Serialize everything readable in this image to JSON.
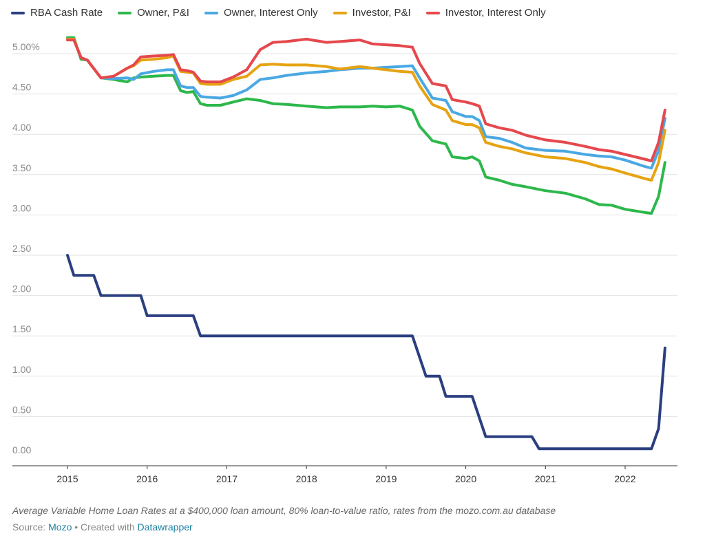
{
  "legend": [
    {
      "label": "RBA Cash Rate",
      "color": "#2b3f80"
    },
    {
      "label": "Owner, P&I",
      "color": "#2db84b"
    },
    {
      "label": "Owner, Interest Only",
      "color": "#4aa8e3"
    },
    {
      "label": "Investor, P&I",
      "color": "#e6a312"
    },
    {
      "label": "Investor, Interest Only",
      "color": "#e5484d"
    }
  ],
  "notes": "Average Variable Home Loan Rates at a $400,000 loan amount, 80% loan-to-value ratio, rates from the mozo.com.au database",
  "source": {
    "prefix": "Source:",
    "name": "Mozo",
    "separator": " • Created with ",
    "tool": "Datawrapper"
  },
  "chart_data": {
    "type": "line",
    "x_ticks": [
      "2015",
      "2016",
      "2017",
      "2018",
      "2019",
      "2020",
      "2021",
      "2022"
    ],
    "y_ticks": [
      "0.00",
      "0.50",
      "1.00",
      "1.50",
      "2.00",
      "2.50",
      "3.00",
      "3.50",
      "4.00",
      "4.50",
      "5.00%"
    ],
    "ylim": [
      0,
      5.25
    ],
    "xlim": [
      2014.75,
      2022.7
    ],
    "grid": true,
    "legend_position": "top",
    "series": [
      {
        "name": "RBA Cash Rate",
        "color": "#2b3f80",
        "x": [
          2015.0,
          2015.08,
          2015.33,
          2015.42,
          2015.92,
          2016.0,
          2016.58,
          2016.67,
          2019.33,
          2019.5,
          2019.67,
          2019.75,
          2020.08,
          2020.25,
          2020.83,
          2020.92,
          2021.0,
          2022.33,
          2022.42,
          2022.5
        ],
        "y": [
          2.5,
          2.25,
          2.25,
          2.0,
          2.0,
          1.75,
          1.75,
          1.5,
          1.5,
          1.0,
          1.0,
          0.75,
          0.75,
          0.25,
          0.25,
          0.1,
          0.1,
          0.1,
          0.35,
          1.35
        ]
      },
      {
        "name": "Owner, P&I",
        "color": "#2db84b",
        "x": [
          2015.0,
          2015.08,
          2015.17,
          2015.25,
          2015.42,
          2015.58,
          2015.75,
          2015.83,
          2015.92,
          2016.08,
          2016.25,
          2016.33,
          2016.42,
          2016.5,
          2016.58,
          2016.67,
          2016.75,
          2016.92,
          2017.08,
          2017.25,
          2017.42,
          2017.58,
          2017.75,
          2018.0,
          2018.25,
          2018.42,
          2018.67,
          2018.83,
          2019.0,
          2019.17,
          2019.33,
          2019.42,
          2019.58,
          2019.75,
          2019.83,
          2020.0,
          2020.08,
          2020.17,
          2020.25,
          2020.42,
          2020.58,
          2020.75,
          2021.0,
          2021.25,
          2021.5,
          2021.67,
          2021.83,
          2022.0,
          2022.25,
          2022.33,
          2022.42,
          2022.5
        ],
        "y": [
          5.2,
          5.2,
          4.93,
          4.92,
          4.7,
          4.68,
          4.65,
          4.7,
          4.71,
          4.72,
          4.73,
          4.73,
          4.54,
          4.52,
          4.53,
          4.38,
          4.36,
          4.36,
          4.4,
          4.44,
          4.42,
          4.38,
          4.37,
          4.35,
          4.33,
          4.34,
          4.34,
          4.35,
          4.34,
          4.35,
          4.3,
          4.1,
          3.92,
          3.88,
          3.72,
          3.7,
          3.72,
          3.67,
          3.47,
          3.43,
          3.38,
          3.35,
          3.3,
          3.27,
          3.2,
          3.13,
          3.12,
          3.07,
          3.03,
          3.02,
          3.23,
          3.65
        ]
      },
      {
        "name": "Owner, Interest Only",
        "color": "#4aa8e3",
        "x": [
          2015.0,
          2015.08,
          2015.17,
          2015.25,
          2015.42,
          2015.58,
          2015.75,
          2015.83,
          2015.92,
          2016.08,
          2016.25,
          2016.33,
          2016.42,
          2016.5,
          2016.58,
          2016.67,
          2016.75,
          2016.92,
          2017.08,
          2017.25,
          2017.42,
          2017.58,
          2017.75,
          2018.0,
          2018.25,
          2018.42,
          2018.67,
          2018.83,
          2019.0,
          2019.17,
          2019.33,
          2019.42,
          2019.58,
          2019.75,
          2019.83,
          2020.0,
          2020.08,
          2020.17,
          2020.25,
          2020.42,
          2020.58,
          2020.75,
          2021.0,
          2021.25,
          2021.5,
          2021.67,
          2021.83,
          2022.0,
          2022.25,
          2022.33,
          2022.42,
          2022.5
        ],
        "y": [
          5.18,
          5.18,
          4.95,
          4.92,
          4.7,
          4.69,
          4.7,
          4.68,
          4.75,
          4.78,
          4.8,
          4.8,
          4.6,
          4.58,
          4.58,
          4.47,
          4.46,
          4.45,
          4.48,
          4.55,
          4.68,
          4.7,
          4.73,
          4.76,
          4.78,
          4.8,
          4.82,
          4.82,
          4.83,
          4.84,
          4.85,
          4.7,
          4.45,
          4.42,
          4.28,
          4.22,
          4.22,
          4.17,
          3.97,
          3.95,
          3.9,
          3.83,
          3.8,
          3.79,
          3.75,
          3.73,
          3.72,
          3.68,
          3.6,
          3.58,
          3.8,
          4.2
        ]
      },
      {
        "name": "Investor, P&I",
        "color": "#e6a312",
        "x": [
          2015.0,
          2015.08,
          2015.17,
          2015.25,
          2015.42,
          2015.58,
          2015.75,
          2015.83,
          2015.92,
          2016.08,
          2016.25,
          2016.33,
          2016.42,
          2016.5,
          2016.58,
          2016.67,
          2016.75,
          2016.92,
          2017.08,
          2017.25,
          2017.42,
          2017.58,
          2017.75,
          2018.0,
          2018.25,
          2018.42,
          2018.67,
          2018.83,
          2019.0,
          2019.17,
          2019.33,
          2019.42,
          2019.58,
          2019.75,
          2019.83,
          2020.0,
          2020.08,
          2020.17,
          2020.25,
          2020.42,
          2020.58,
          2020.75,
          2021.0,
          2021.25,
          2021.5,
          2021.67,
          2021.83,
          2022.0,
          2022.25,
          2022.33,
          2022.42,
          2022.5
        ],
        "y": [
          5.18,
          5.18,
          4.95,
          4.92,
          4.7,
          4.72,
          4.82,
          4.85,
          4.92,
          4.93,
          4.95,
          4.97,
          4.78,
          4.77,
          4.76,
          4.63,
          4.62,
          4.62,
          4.68,
          4.72,
          4.86,
          4.87,
          4.86,
          4.86,
          4.84,
          4.81,
          4.84,
          4.82,
          4.8,
          4.78,
          4.77,
          4.6,
          4.37,
          4.3,
          4.17,
          4.12,
          4.12,
          4.08,
          3.9,
          3.85,
          3.82,
          3.77,
          3.72,
          3.7,
          3.65,
          3.6,
          3.57,
          3.52,
          3.45,
          3.43,
          3.65,
          4.05
        ]
      },
      {
        "name": "Investor, Interest Only",
        "color": "#e5484d",
        "x": [
          2015.0,
          2015.08,
          2015.17,
          2015.25,
          2015.42,
          2015.58,
          2015.75,
          2015.83,
          2015.92,
          2016.08,
          2016.25,
          2016.33,
          2016.42,
          2016.5,
          2016.58,
          2016.67,
          2016.75,
          2016.92,
          2017.08,
          2017.25,
          2017.42,
          2017.58,
          2017.75,
          2018.0,
          2018.25,
          2018.42,
          2018.67,
          2018.83,
          2019.0,
          2019.17,
          2019.33,
          2019.42,
          2019.58,
          2019.75,
          2019.83,
          2020.0,
          2020.08,
          2020.17,
          2020.25,
          2020.42,
          2020.58,
          2020.75,
          2021.0,
          2021.25,
          2021.5,
          2021.67,
          2021.83,
          2022.0,
          2022.25,
          2022.33,
          2022.42,
          2022.5
        ],
        "y": [
          5.17,
          5.17,
          4.95,
          4.92,
          4.7,
          4.72,
          4.82,
          4.86,
          4.96,
          4.97,
          4.98,
          4.99,
          4.8,
          4.79,
          4.77,
          4.66,
          4.65,
          4.65,
          4.71,
          4.8,
          5.05,
          5.14,
          5.15,
          5.18,
          5.14,
          5.15,
          5.17,
          5.12,
          5.11,
          5.1,
          5.08,
          4.88,
          4.63,
          4.6,
          4.43,
          4.4,
          4.38,
          4.35,
          4.13,
          4.08,
          4.05,
          3.99,
          3.93,
          3.9,
          3.85,
          3.81,
          3.79,
          3.75,
          3.69,
          3.67,
          3.9,
          4.3
        ]
      }
    ]
  }
}
